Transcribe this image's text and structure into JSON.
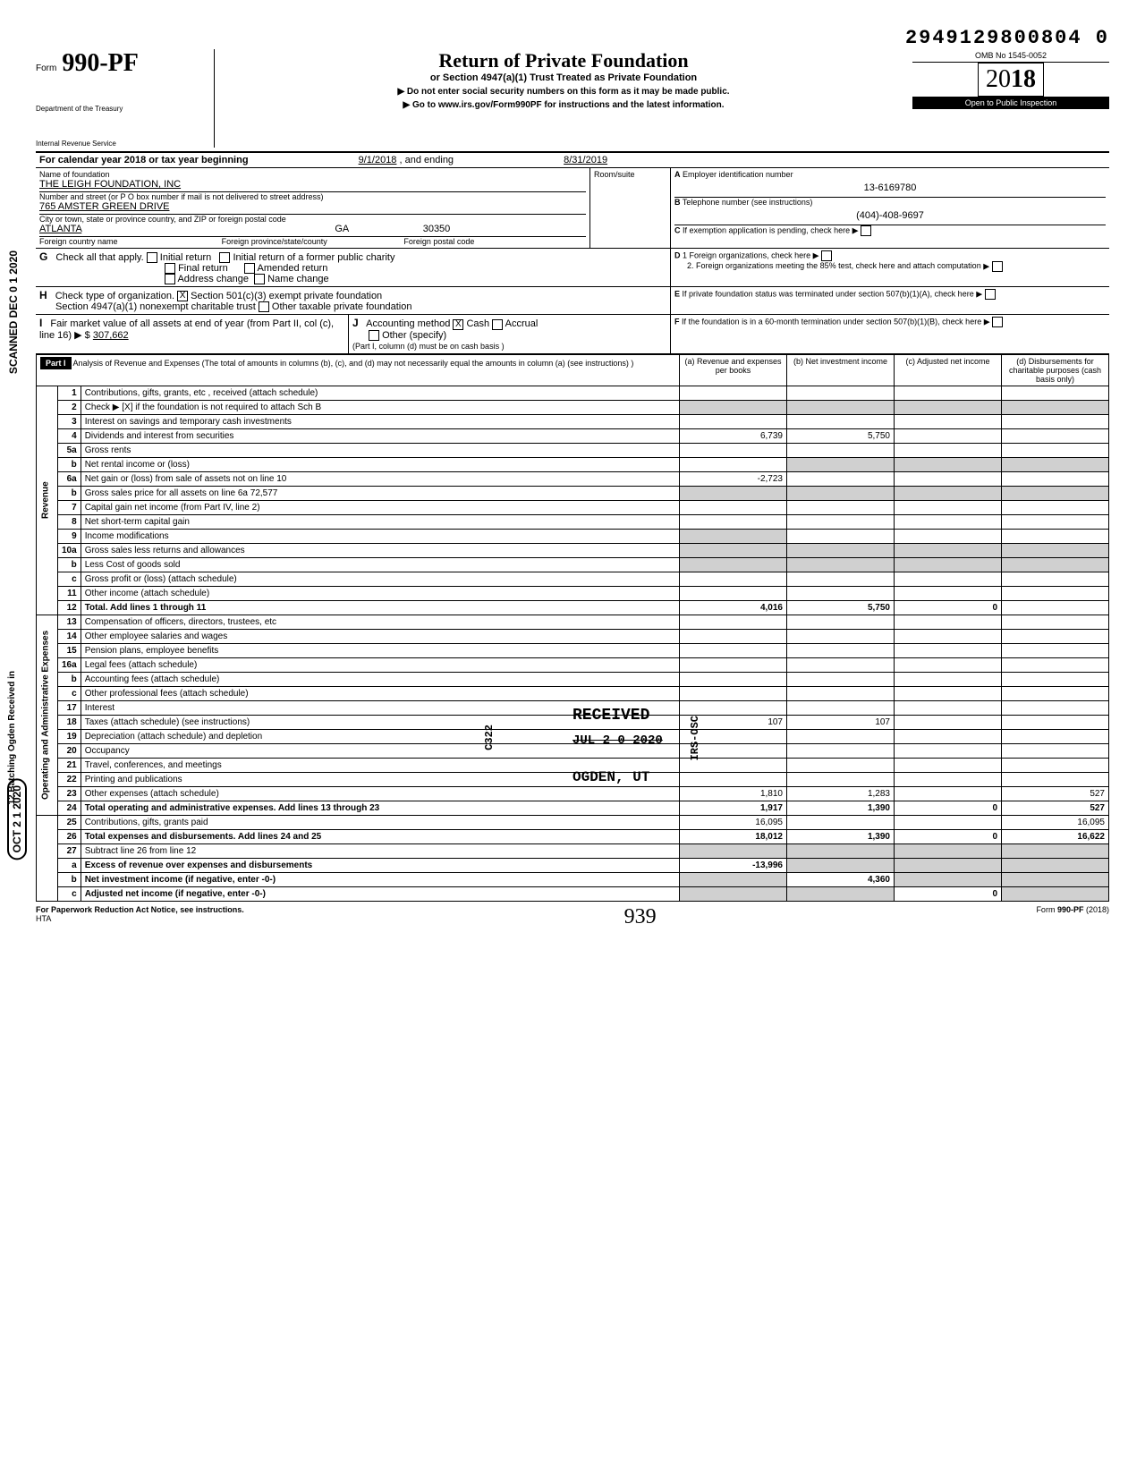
{
  "tracking_number": "2949129800804 0",
  "form": {
    "prefix": "Form",
    "number": "990-PF",
    "dept1": "Department of the Treasury",
    "dept2": "Internal Revenue Service"
  },
  "header": {
    "title": "Return of Private Foundation",
    "subtitle": "or Section 4947(a)(1) Trust Treated as Private Foundation",
    "instr1": "Do not enter social security numbers on this form as it may be made public.",
    "instr2": "▶ Go to www.irs.gov/Form990PF for instructions and the latest information.",
    "omb": "OMB No 1545-0052",
    "year_prefix": "20",
    "year": "18",
    "inspection": "Open to Public Inspection"
  },
  "period": {
    "label": "For calendar year 2018 or tax year beginning",
    "begin": "9/1/2018",
    "mid": ", and ending",
    "end": "8/31/2019"
  },
  "identity": {
    "name_label": "Name of foundation",
    "name": "THE LEIGH FOUNDATION, INC",
    "addr_label": "Number and street (or P O  box number if mail is not delivered to street address)",
    "street": "765 AMSTER GREEN DRIVE",
    "room_label": "Room/suite",
    "city_label": "City or town, state or province  country, and ZIP or foreign postal code",
    "city": "ATLANTA",
    "state": "GA",
    "zip": "30350",
    "foreign_country_label": "Foreign country name",
    "foreign_province_label": "Foreign province/state/county",
    "foreign_postal_label": "Foreign postal code",
    "ein_label": "A Employer identification number",
    "ein": "13-6169780",
    "phone_label": "B Telephone number (see instructions)",
    "phone": "(404)-408-9697",
    "c_label": "C  If exemption application is pending, check here  ▶"
  },
  "sectionG": {
    "label": "Check all that apply.",
    "opts": [
      "Initial return",
      "Final return",
      "Address change",
      "Initial return of a former public charity",
      "Amended return",
      "Name change"
    ]
  },
  "sectionD": {
    "d1": "1  Foreign organizations, check here",
    "d2": "2. Foreign organizations meeting the 85% test, check here and attach computation"
  },
  "sectionH": {
    "label": "Check type of organization.",
    "opt1": "Section 501(c)(3) exempt private foundation",
    "opt2": "Section 4947(a)(1) nonexempt charitable trust",
    "opt3": "Other taxable private foundation"
  },
  "sectionE": {
    "label": "If private foundation status was terminated under section 507(b)(1)(A), check here"
  },
  "sectionI": {
    "label": "Fair market value of all assets at end of year (from Part II, col (c), line 16) ▶ $",
    "value": "307,662"
  },
  "sectionJ": {
    "label": "Accounting method",
    "cash": "Cash",
    "accrual": "Accrual",
    "other": "Other (specify)",
    "note": "(Part I, column (d) must be on cash basis )"
  },
  "sectionF": {
    "label": "If the foundation is in a 60-month termination under section 507(b)(1)(B), check here"
  },
  "part1": {
    "title": "Part I",
    "desc": "Analysis of Revenue and Expenses (The total of amounts in columns (b), (c), and (d) may not necessarily equal the amounts in column (a) (see instructions) )",
    "col_a": "(a) Revenue and expenses per books",
    "col_b": "(b) Net investment income",
    "col_c": "(c) Adjusted net income",
    "col_d": "(d) Disbursements for charitable purposes (cash basis only)"
  },
  "revenue_label": "Revenue",
  "expenses_label": "Operating and Administrative Expenses",
  "rows": {
    "r1": {
      "n": "1",
      "d": "Contributions, gifts, grants, etc , received (attach schedule)"
    },
    "r2": {
      "n": "2",
      "d": "Check ▶ [X] if the foundation is not required to attach Sch  B"
    },
    "r3": {
      "n": "3",
      "d": "Interest on savings and temporary cash investments"
    },
    "r4": {
      "n": "4",
      "d": "Dividends and interest from securities",
      "a": "6,739",
      "b": "5,750"
    },
    "r5a": {
      "n": "5a",
      "d": "Gross rents"
    },
    "r5b": {
      "n": "b",
      "d": "Net rental income or (loss)"
    },
    "r6a": {
      "n": "6a",
      "d": "Net gain or (loss) from sale of assets not on line 10",
      "a": "-2,723"
    },
    "r6b": {
      "n": "b",
      "d": "Gross sales price for all assets on line 6a              72,577"
    },
    "r7": {
      "n": "7",
      "d": "Capital gain net income (from Part IV, line 2)"
    },
    "r8": {
      "n": "8",
      "d": "Net short-term capital gain"
    },
    "r9": {
      "n": "9",
      "d": "Income modifications"
    },
    "r10a": {
      "n": "10a",
      "d": "Gross sales less returns and allowances"
    },
    "r10b": {
      "n": "b",
      "d": "Less Cost of goods sold"
    },
    "r10c": {
      "n": "c",
      "d": "Gross profit or (loss) (attach schedule)"
    },
    "r11": {
      "n": "11",
      "d": "Other income (attach schedule)"
    },
    "r12": {
      "n": "12",
      "d": "Total.  Add lines 1 through 11",
      "a": "4,016",
      "b": "5,750",
      "c": "0"
    },
    "r13": {
      "n": "13",
      "d": "Compensation of officers, directors, trustees, etc"
    },
    "r14": {
      "n": "14",
      "d": "Other employee salaries and wages"
    },
    "r15": {
      "n": "15",
      "d": "Pension plans, employee benefits"
    },
    "r16a": {
      "n": "16a",
      "d": "Legal fees (attach schedule)"
    },
    "r16b": {
      "n": "b",
      "d": "Accounting fees (attach schedule)"
    },
    "r16c": {
      "n": "c",
      "d": "Other professional fees (attach schedule)"
    },
    "r17": {
      "n": "17",
      "d": "Interest"
    },
    "r18": {
      "n": "18",
      "d": "Taxes (attach schedule) (see instructions)",
      "a": "107",
      "b": "107"
    },
    "r19": {
      "n": "19",
      "d": "Depreciation (attach schedule) and depletion"
    },
    "r20": {
      "n": "20",
      "d": "Occupancy"
    },
    "r21": {
      "n": "21",
      "d": "Travel, conferences, and meetings"
    },
    "r22": {
      "n": "22",
      "d": "Printing and publications"
    },
    "r23": {
      "n": "23",
      "d": "Other expenses (attach schedule)",
      "a": "1,810",
      "b": "1,283",
      "dd": "527"
    },
    "r24": {
      "n": "24",
      "d": "Total operating and administrative expenses. Add lines 13 through 23",
      "a": "1,917",
      "b": "1,390",
      "c": "0",
      "dd": "527"
    },
    "r25": {
      "n": "25",
      "d": "Contributions, gifts, grants paid",
      "a": "16,095",
      "dd": "16,095"
    },
    "r26": {
      "n": "26",
      "d": "Total expenses and disbursements. Add lines 24 and 25",
      "a": "18,012",
      "b": "1,390",
      "c": "0",
      "dd": "16,622"
    },
    "r27": {
      "n": "27",
      "d": "Subtract line 26 from line 12"
    },
    "r27a": {
      "n": "a",
      "d": "Excess of revenue over expenses and disbursements",
      "a": "-13,996"
    },
    "r27b": {
      "n": "b",
      "d": "Net investment income (if negative, enter -0-)",
      "b": "4,360"
    },
    "r27c": {
      "n": "c",
      "d": "Adjusted net income (if negative, enter -0-)",
      "c": "0"
    }
  },
  "stamps": {
    "received": "RECEIVED",
    "date": "JUL 2 0 2020",
    "ogden": "OGDEN, UT",
    "irs_osc": "IRS-OSC",
    "c322": "C322",
    "scanned": "SCANNED DEC 0 1 2020",
    "batching": "12 Batching Ogden   Received in",
    "oct": "OCT 2 1 2020"
  },
  "footer": {
    "left": "For Paperwork Reduction Act Notice, see instructions.",
    "hta": "HTA",
    "page": "939",
    "right": "Form 990-PF (2018)"
  },
  "bold_rows": [
    "r12",
    "r24",
    "r26",
    "r27a",
    "r27b",
    "r27c"
  ]
}
